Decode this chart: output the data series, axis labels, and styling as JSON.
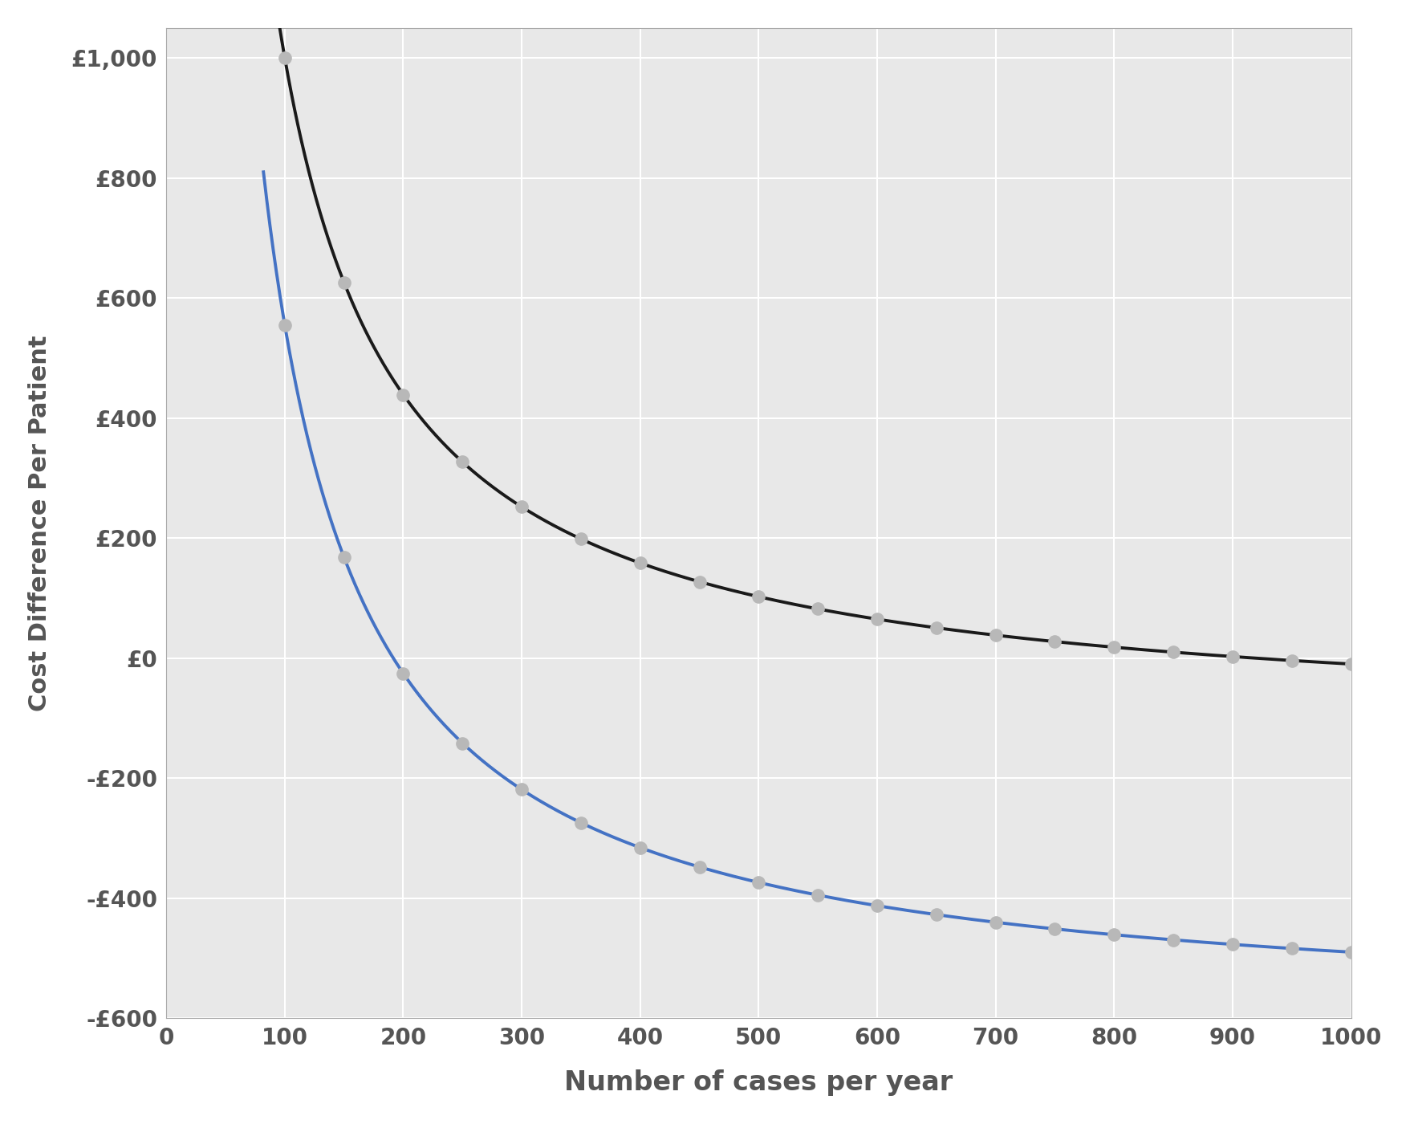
{
  "title": "",
  "xlabel": "Number of cases per year",
  "ylabel": "Cost Difference Per Patient",
  "xlim": [
    0,
    1000
  ],
  "ylim": [
    -600,
    1050
  ],
  "xticks": [
    0,
    100,
    200,
    300,
    400,
    500,
    600,
    700,
    800,
    900,
    1000
  ],
  "yticks": [
    -600,
    -400,
    -200,
    0,
    200,
    400,
    600,
    800,
    1000
  ],
  "ytick_labels": [
    "-£600",
    "-£400",
    "-£200",
    "£0",
    "£200",
    "£400",
    "£600",
    "£800",
    "£1,000"
  ],
  "black_line_color": "#1a1a1a",
  "blue_line_color": "#4472c4",
  "marker_color": "#b8b8b8",
  "plot_bg_color": "#e8e8e8",
  "fig_bg_color": "#ffffff",
  "grid_color": "#ffffff",
  "linewidth": 2.8,
  "marker_size": 11,
  "C_black": 112222,
  "D_black": -122.2,
  "C_blue": 116111,
  "D_blue": -606.1,
  "xlabel_fontsize": 24,
  "ylabel_fontsize": 22,
  "tick_fontsize": 20,
  "tick_color": "#555555",
  "label_color": "#555555"
}
